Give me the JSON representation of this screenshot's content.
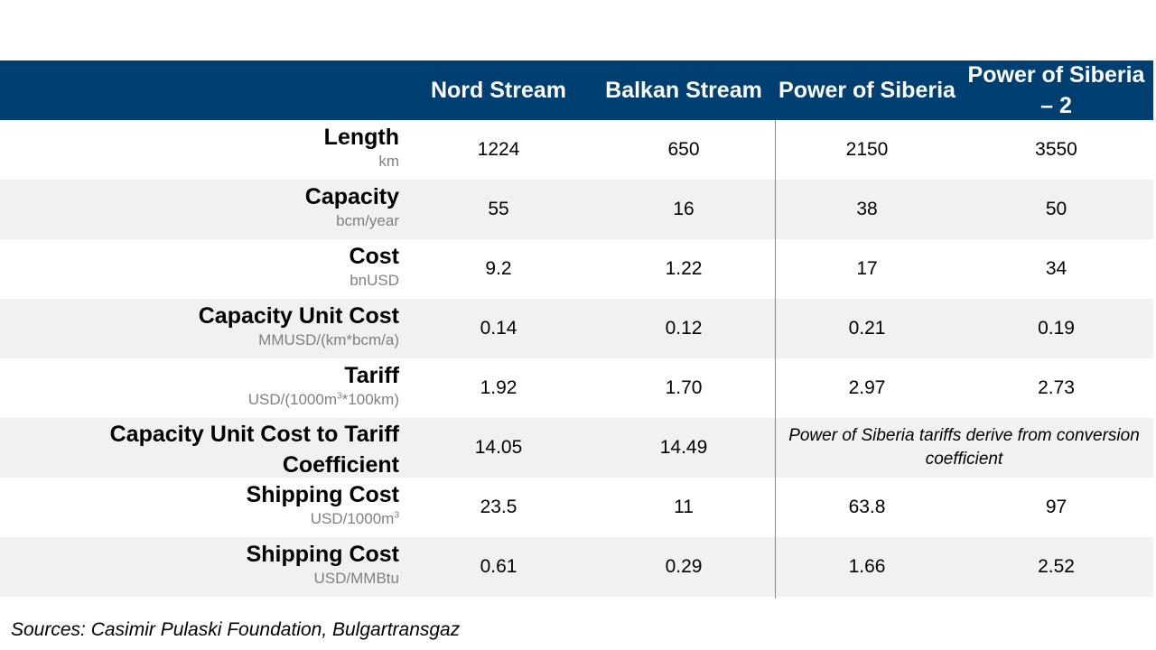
{
  "colors": {
    "header_bg": "#003f72",
    "row_alt_bg": "#f1f1f1",
    "unit_text": "#808080",
    "divider": "#8a8a8a"
  },
  "columns": [
    "Nord Stream",
    "Balkan Stream",
    "Power of Siberia",
    "Power of Siberia – 2"
  ],
  "rows": [
    {
      "name": "Length",
      "unit": "km",
      "values": [
        "1224",
        "650",
        "2150",
        "3550"
      ]
    },
    {
      "name": "Capacity",
      "unit": "bcm/year",
      "values": [
        "55",
        "16",
        "38",
        "50"
      ]
    },
    {
      "name": "Cost",
      "unit": "bnUSD",
      "values": [
        "9.2",
        "1.22",
        "17",
        "34"
      ]
    },
    {
      "name": "Capacity Unit Cost",
      "unit": "MMUSD/(km*bcm/a)",
      "values": [
        "0.14",
        "0.12",
        "0.21",
        "0.19"
      ]
    },
    {
      "name": "Tariff",
      "unit_prefix": "USD/(1000m",
      "unit_sup": "3",
      "unit_suffix": "*100km)",
      "values": [
        "1.92",
        "1.70",
        "2.97",
        "2.73"
      ]
    },
    {
      "name": "Capacity Unit Cost to Tariff Coefficient",
      "values": [
        "14.05",
        "14.49"
      ],
      "merged_note": "Power of Siberia tariffs derive from conversion coefficient"
    },
    {
      "name": "Shipping Cost",
      "unit_prefix": "USD/1000m",
      "unit_sup": "3",
      "values": [
        "23.5",
        "11",
        "63.8",
        "97"
      ]
    },
    {
      "name": "Shipping Cost",
      "unit": "USD/MMBtu",
      "values": [
        "0.61",
        "0.29",
        "1.66",
        "2.52"
      ]
    }
  ],
  "source": "Sources: Casimir Pulaski Foundation, Bulgartransgaz"
}
